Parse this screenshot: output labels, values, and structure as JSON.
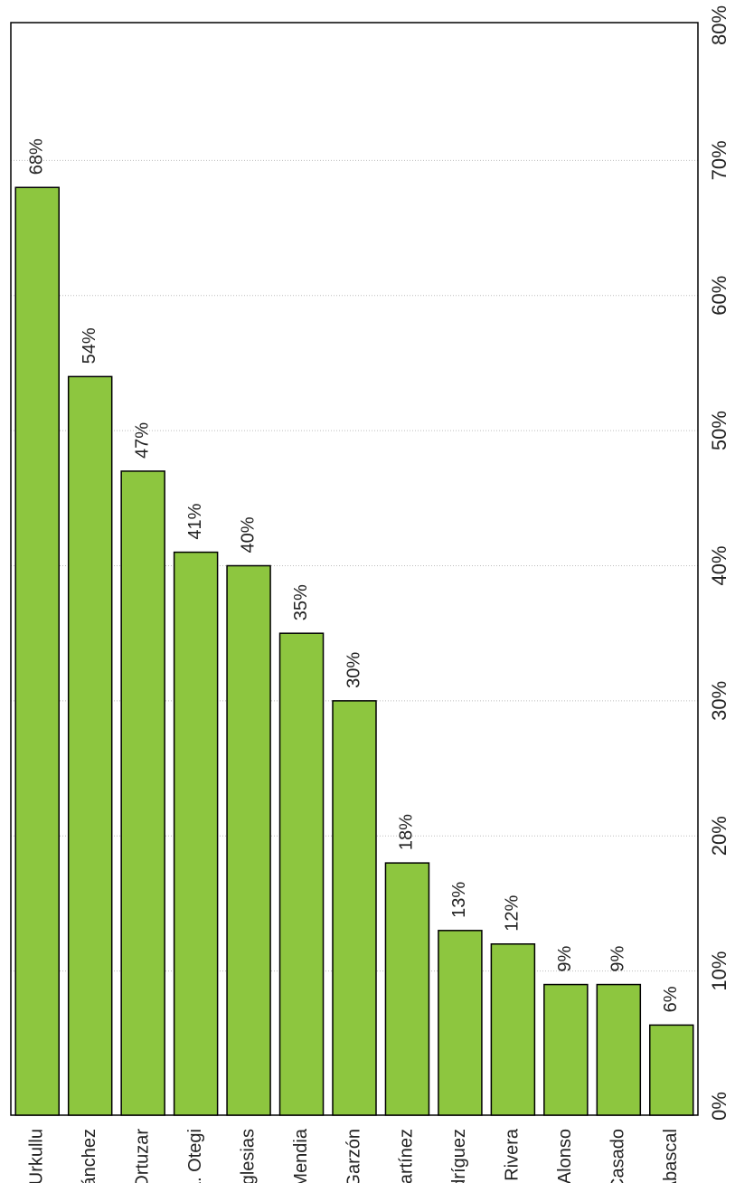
{
  "chart_data": {
    "type": "bar",
    "orientation": "rotated-vertical",
    "categories": [
      "I. Urkullu",
      "P. Sánchez",
      "A. Ortuzar",
      "A. Otegi",
      "P. Iglesias",
      "I. Mendia",
      "A. Garzón",
      "L. Martínez",
      "A. Rodríguez",
      "A. Rivera",
      "A. Alonso",
      "P. Casado",
      "S. Abascal"
    ],
    "values": [
      68,
      54,
      47,
      41,
      40,
      35,
      30,
      18,
      13,
      12,
      9,
      9,
      6
    ],
    "data_labels": [
      "68%",
      "54%",
      "47%",
      "41%",
      "40%",
      "35%",
      "30%",
      "18%",
      "13%",
      "12%",
      "9%",
      "9%",
      "6%"
    ],
    "value_ticks": [
      "0%",
      "10%",
      "20%",
      "30%",
      "40%",
      "50%",
      "60%",
      "70%",
      "80%"
    ],
    "ylim": [
      0,
      80
    ],
    "grid": true,
    "bar_color": "#8dc63f",
    "title": "",
    "xlabel": "",
    "ylabel": ""
  }
}
